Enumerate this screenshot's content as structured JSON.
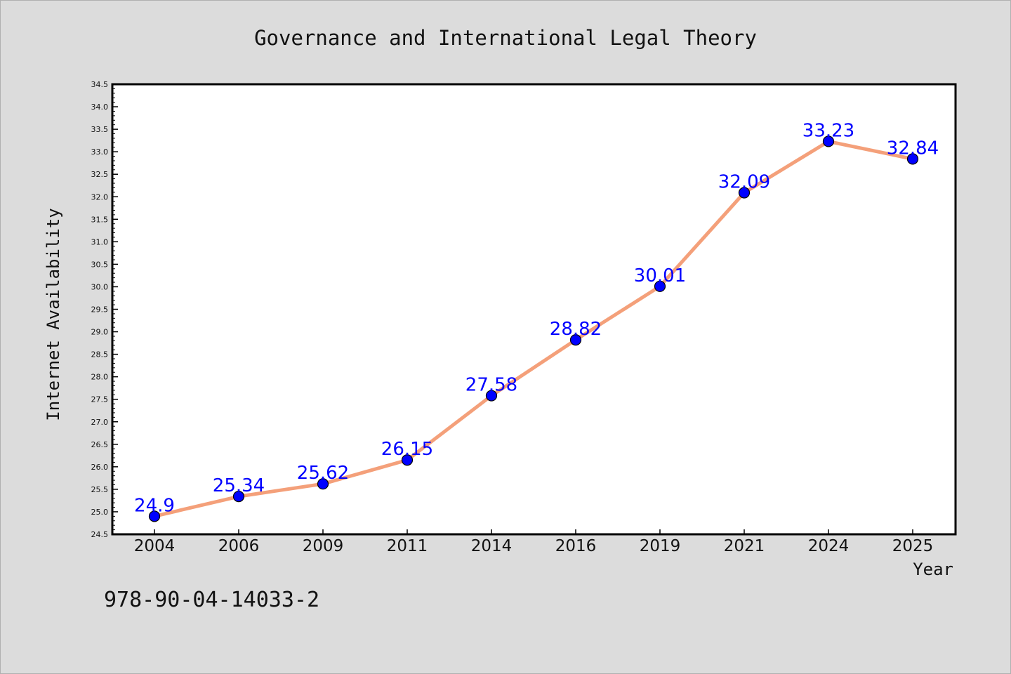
{
  "page": {
    "footer_text": "978-90-04-14033-2"
  },
  "colors": {
    "background": "#dcdcdc",
    "plot_background": "#ffffff",
    "line": "#f4a07a",
    "marker": "#0000ff",
    "data_label": "#0000ff"
  },
  "chart_data": {
    "type": "line",
    "title": "Governance and International Legal Theory",
    "xlabel": "Year",
    "ylabel": "Internet Availability",
    "categories": [
      "2004",
      "2006",
      "2009",
      "2011",
      "2014",
      "2016",
      "2019",
      "2021",
      "2024",
      "2025"
    ],
    "series": [
      {
        "values": [
          24.9,
          25.34,
          25.62,
          26.15,
          27.58,
          28.82,
          30.01,
          32.09,
          33.23,
          32.84
        ],
        "data_labels": [
          "24.9",
          "25.34",
          "25.62",
          "26.15",
          "27.58",
          "28.82",
          "30.01",
          "32.09",
          "33.23",
          "32.84"
        ]
      }
    ],
    "ylim": [
      24.5,
      34.5
    ],
    "yticks": [
      "24.5",
      "25.0",
      "25.5",
      "26.0",
      "26.5",
      "27.0",
      "27.5",
      "28.0",
      "28.5",
      "29.0",
      "29.5",
      "30.0",
      "30.5",
      "31.0",
      "31.5",
      "32.0",
      "32.5",
      "33.0",
      "33.5",
      "34.0",
      "34.5"
    ],
    "grid": false,
    "legend": "none"
  }
}
